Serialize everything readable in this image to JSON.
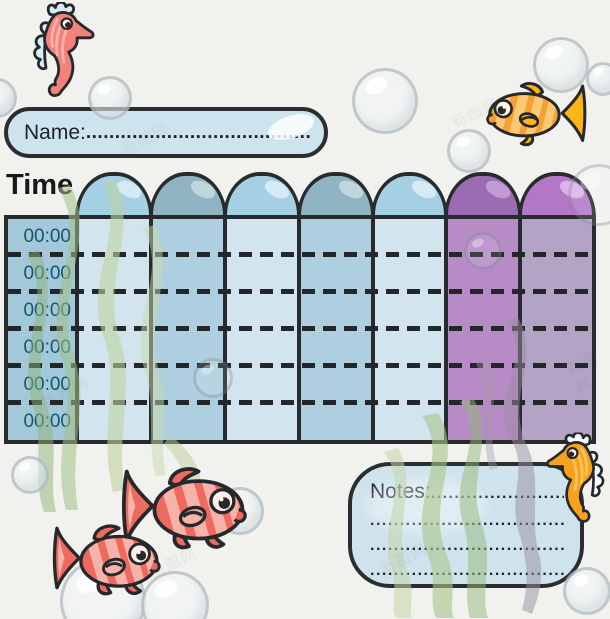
{
  "name_box": {
    "label": "Name:",
    "dots": "...................................................."
  },
  "timetable": {
    "header": "Time",
    "time_slots": [
      "00:00",
      "00:00",
      "00:00",
      "00:00",
      "00:00",
      "00:00"
    ],
    "columns": [
      {
        "id": "day-1",
        "arch": "#a5d0e4",
        "highlight": "#ddeef5",
        "body": "#d2e4ee"
      },
      {
        "id": "day-2",
        "arch": "#90b4c2",
        "highlight": "#c9dce2",
        "body": "#aecfdf"
      },
      {
        "id": "day-3",
        "arch": "#a5d0e4",
        "highlight": "#ddeef5",
        "body": "#d2e4ee"
      },
      {
        "id": "day-4",
        "arch": "#90b4c2",
        "highlight": "#c9dce2",
        "body": "#aecfdf"
      },
      {
        "id": "day-5",
        "arch": "#a5d0e4",
        "highlight": "#ddeef5",
        "body": "#d2e4ee"
      },
      {
        "id": "day-6",
        "arch": "#9c6cb2",
        "highlight": "#c9a3d8",
        "body": "#b68bc6"
      },
      {
        "id": "day-7",
        "arch": "#b277c6",
        "highlight": "#e0bcec",
        "body": "#b3a3c5"
      }
    ]
  },
  "notes_box": {
    "label": "Notes:",
    "leader": "..........................",
    "lines": [
      "......................................",
      "......................................",
      "......................................"
    ]
  },
  "watermark": {
    "text": "新图网"
  },
  "palette": {
    "background": "#f1f1ee",
    "outline": "#2b2e30",
    "field_fill": "#cde4ef",
    "time_column_fill": "#a2c8da",
    "time_text": "#14566d",
    "dash": "#23272a",
    "seahorse_pink": "#f2827a",
    "seahorse_orange": "#f7a21d",
    "fish_red": "#ee6a5e",
    "fish_orange": "#f5a032",
    "seaweed_green": "#a3c186",
    "seaweed_gray": "#9a8da0"
  }
}
